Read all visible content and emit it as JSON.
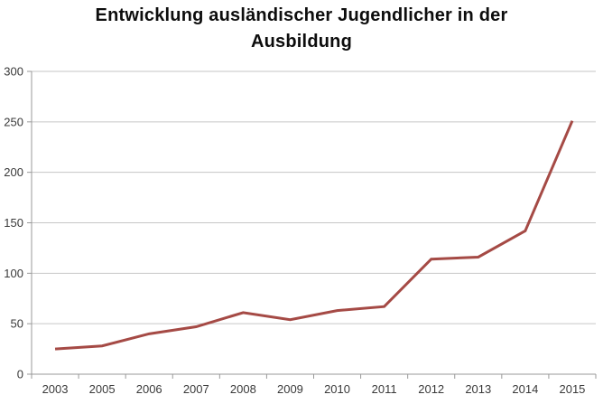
{
  "page": {
    "background_color": "#ffffff"
  },
  "chart_data": {
    "type": "line",
    "title": "Entwicklung ausländischer Jugendlicher in der Ausbildung",
    "categories": [
      "2003",
      "2005",
      "2006",
      "2007",
      "2008",
      "2009",
      "2010",
      "2011",
      "2012",
      "2013",
      "2014",
      "2015"
    ],
    "values": [
      25,
      28,
      40,
      47,
      61,
      54,
      63,
      67,
      114,
      116,
      142,
      251
    ],
    "xlabel": "",
    "ylabel": "",
    "ylim": [
      0,
      300
    ],
    "yticks": [
      0,
      50,
      100,
      150,
      200,
      250,
      300
    ],
    "grid": "horizontal",
    "legend_position": "none",
    "line_color": "#a54a45",
    "line_width": 3,
    "gridline_color": "#c6c6c6",
    "axis_color": "#999999",
    "tick_label_color": "#3a3a3a"
  }
}
